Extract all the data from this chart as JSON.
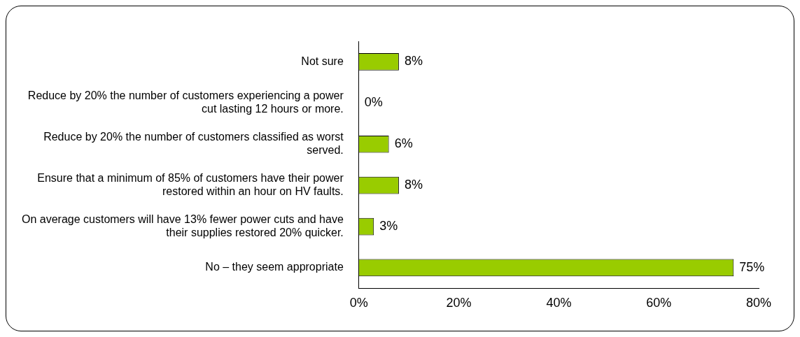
{
  "chart_data": {
    "type": "bar",
    "orientation": "horizontal",
    "categories": [
      "Not sure",
      "Reduce by 20% the number of customers experiencing a power cut lasting 12 hours or more.",
      "Reduce by 20% the number of customers classified as worst served.",
      "Ensure that a minimum of 85% of customers have their power restored within an hour on HV faults.",
      "On average customers will have 13% fewer power cuts and have their supplies restored 20% quicker.",
      "No – they seem appropriate"
    ],
    "values": [
      8,
      0,
      6,
      8,
      3,
      75
    ],
    "value_labels": [
      "8%",
      "0%",
      "6%",
      "8%",
      "3%",
      "75%"
    ],
    "color": "#99cc00",
    "xlim": [
      0,
      80
    ],
    "xticks": [
      {
        "value": 0,
        "label": "0%"
      },
      {
        "value": 20,
        "label": "20%"
      },
      {
        "value": 40,
        "label": "40%"
      },
      {
        "value": 60,
        "label": "60%"
      },
      {
        "value": 80,
        "label": "80%"
      }
    ],
    "grid": false,
    "legend": false
  }
}
